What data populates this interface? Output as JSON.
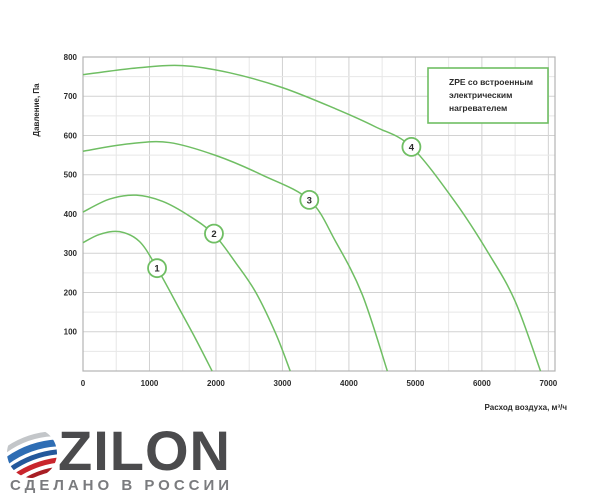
{
  "chart_data": {
    "type": "line",
    "title": "",
    "xlabel": "Расход воздуха, м³/ч",
    "ylabel": "Давление, Па",
    "xlim": [
      0,
      7100
    ],
    "ylim": [
      0,
      800
    ],
    "x_ticks": [
      0,
      1000,
      2000,
      3000,
      4000,
      5000,
      6000,
      7000
    ],
    "y_ticks": [
      100,
      200,
      300,
      400,
      500,
      600,
      700,
      800
    ],
    "grid": {
      "minor_x": 500,
      "minor_y": 50,
      "major_x": 1000,
      "major_y": 100
    },
    "legend": {
      "lines": [
        "ZPE со встроенным",
        "электрическим",
        "нагревателем"
      ],
      "position": "top-right"
    },
    "series": [
      {
        "name": "1",
        "points": [
          [
            0,
            327
          ],
          [
            250,
            348
          ],
          [
            550,
            355
          ],
          [
            850,
            330
          ],
          [
            1114,
            262
          ],
          [
            1460,
            155
          ],
          [
            1700,
            80
          ],
          [
            1942,
            0
          ]
        ],
        "marker": {
          "label": "1",
          "x": 1114,
          "y": 262
        }
      },
      {
        "name": "2",
        "points": [
          [
            0,
            405
          ],
          [
            400,
            438
          ],
          [
            800,
            448
          ],
          [
            1200,
            432
          ],
          [
            1600,
            395
          ],
          [
            1970,
            348
          ],
          [
            2300,
            275
          ],
          [
            2600,
            200
          ],
          [
            2900,
            95
          ],
          [
            3117,
            0
          ]
        ],
        "marker": {
          "label": "2",
          "x": 1970,
          "y": 350
        }
      },
      {
        "name": "3",
        "points": [
          [
            0,
            560
          ],
          [
            700,
            579
          ],
          [
            1300,
            582
          ],
          [
            2000,
            549
          ],
          [
            2700,
            499
          ],
          [
            3404,
            436
          ],
          [
            3800,
            330
          ],
          [
            4200,
            195
          ],
          [
            4578,
            0
          ]
        ],
        "marker": {
          "label": "3",
          "x": 3404,
          "y": 436
        }
      },
      {
        "name": "4",
        "points": [
          [
            0,
            755
          ],
          [
            800,
            772
          ],
          [
            1500,
            778
          ],
          [
            2200,
            760
          ],
          [
            3000,
            722
          ],
          [
            3800,
            668
          ],
          [
            4400,
            622
          ],
          [
            4940,
            571
          ],
          [
            5600,
            430
          ],
          [
            6100,
            300
          ],
          [
            6500,
            178
          ],
          [
            6882,
            0
          ]
        ],
        "marker": {
          "label": "4",
          "x": 4940,
          "y": 571
        }
      }
    ],
    "colors": {
      "curve": "#6fbe63",
      "grid_minor": "#e7e7e7",
      "grid_major": "#d2d2d2",
      "plot_border": "#b3b3b3",
      "text": "#2b2b2b",
      "marker_fill": "#ffffff"
    }
  },
  "logo": {
    "brand": "ZILON",
    "tagline": "СДЕЛАНО В РОССИИ",
    "colors": {
      "brand_text": "#4b4b4d",
      "tagline_text": "#7a7b7e",
      "blue_dark": "#24589b",
      "blue": "#2e6db4",
      "red": "#c9252c",
      "red_dark": "#a81e24",
      "silver": "#c3c6c9"
    }
  }
}
